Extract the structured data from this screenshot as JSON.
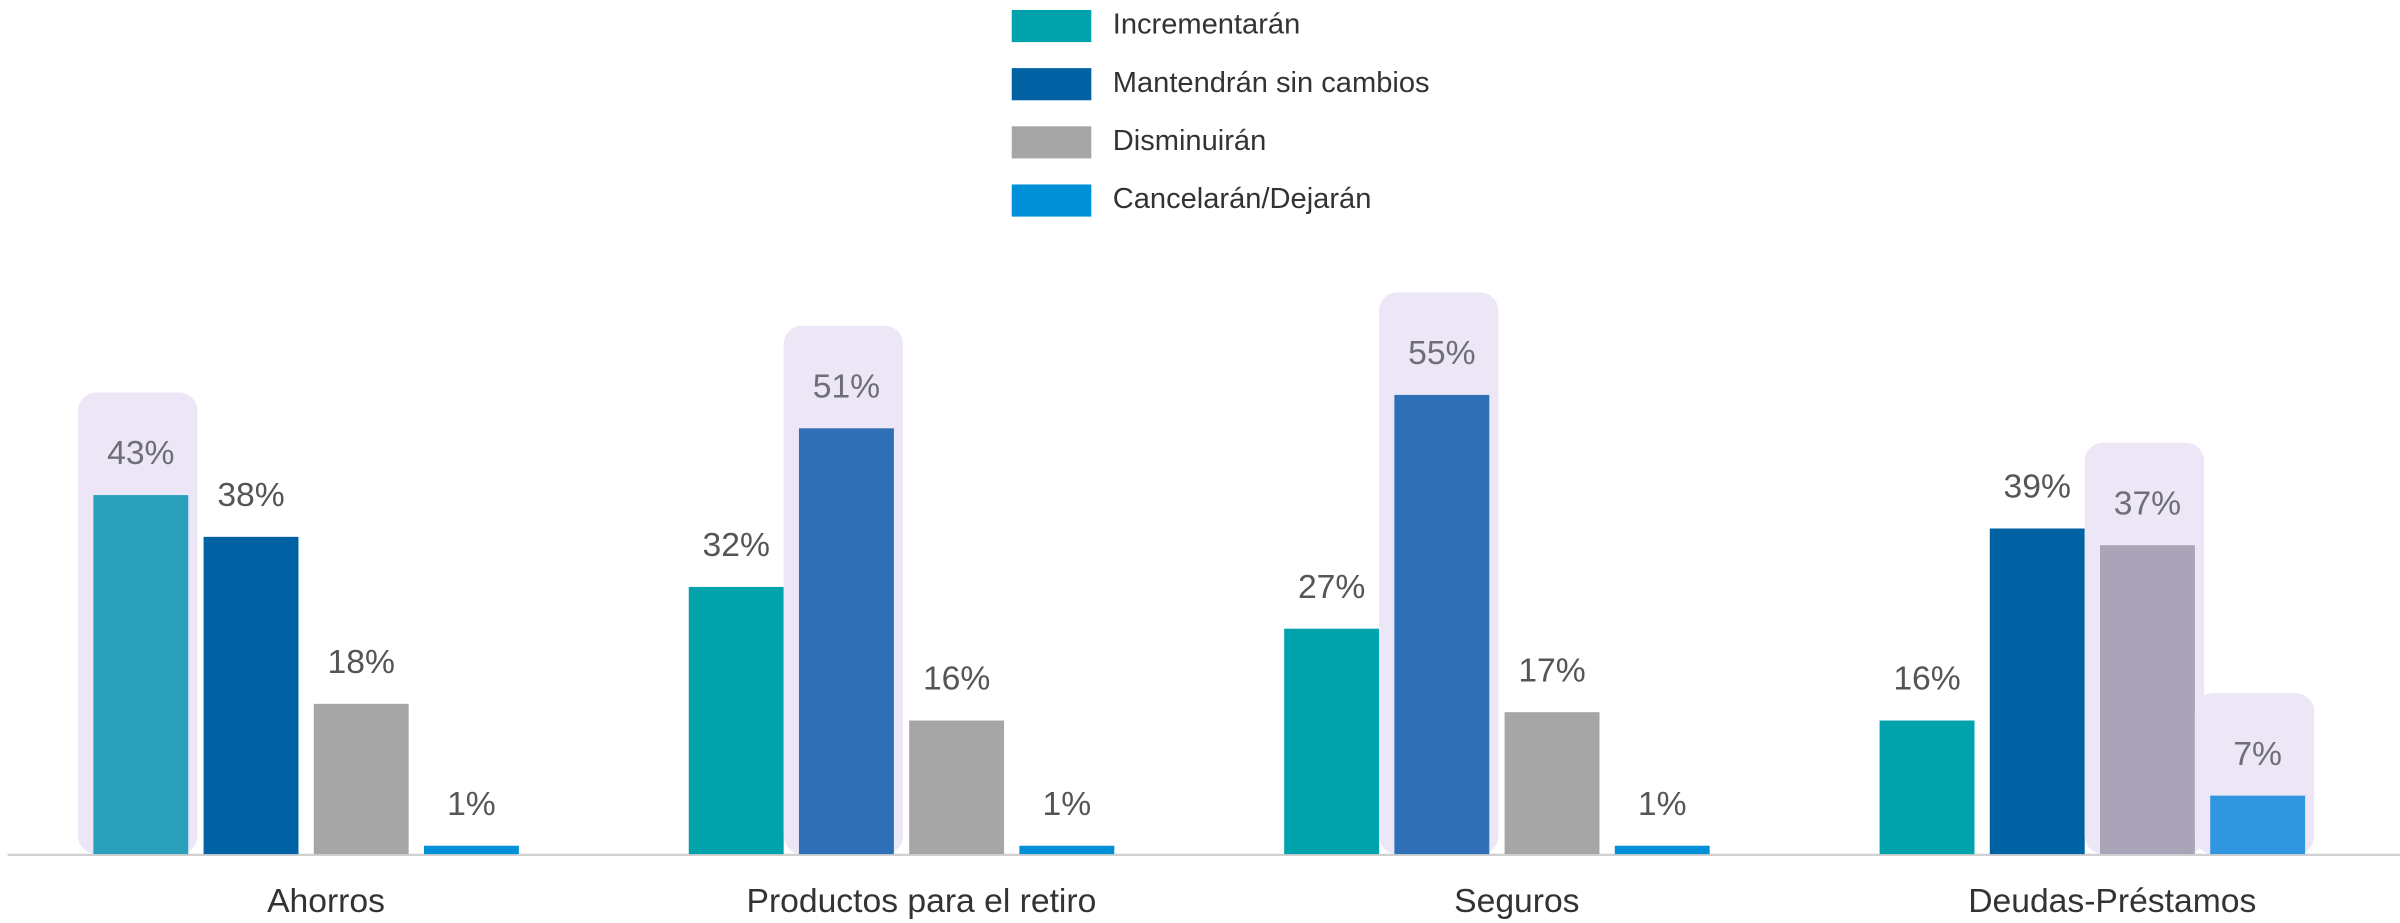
{
  "chart_data": {
    "type": "bar",
    "categories": [
      "Ahorros",
      "Productos para el retiro",
      "Seguros",
      "Deudas-Préstamos"
    ],
    "series": [
      {
        "name": "Incrementarán",
        "color": "#00a2ac",
        "values": [
          43,
          32,
          27,
          16
        ],
        "value_labels": [
          "43%",
          "32%",
          "27%",
          "16%"
        ],
        "highlight": [
          true,
          false,
          false,
          false
        ],
        "highlight_color": "#2aa0bb"
      },
      {
        "name": "Mantendrán  sin cambios",
        "color": "#0062a3",
        "values": [
          38,
          51,
          55,
          39
        ],
        "value_labels": [
          "38%",
          "51%",
          "55%",
          "39%"
        ],
        "highlight": [
          false,
          true,
          true,
          false
        ],
        "highlight_color": "#2e6fb5"
      },
      {
        "name": "Disminuirán",
        "color": "#a6a6a6",
        "values": [
          18,
          16,
          17,
          37
        ],
        "value_labels": [
          "18%",
          "16%",
          "17%",
          "37%"
        ],
        "highlight": [
          false,
          false,
          false,
          true
        ],
        "highlight_color": "#aaa4b8"
      },
      {
        "name": "Cancelarán/Dejarán",
        "color": "#0090d8",
        "values": [
          1,
          1,
          1,
          7
        ],
        "value_labels": [
          "1%",
          "1%",
          "1%",
          "7%"
        ],
        "highlight": [
          false,
          false,
          false,
          true
        ],
        "highlight_color": "#3096e0"
      }
    ],
    "ylim": [
      0,
      55
    ],
    "legend": "top"
  }
}
